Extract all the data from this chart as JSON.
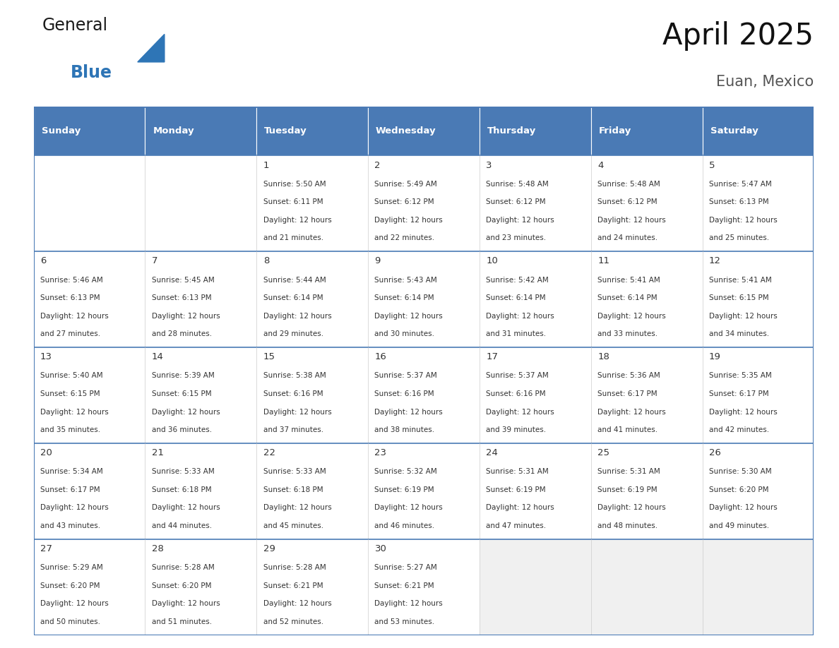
{
  "title": "April 2025",
  "subtitle": "Euan, Mexico",
  "header_color": "#4a7ab5",
  "header_text_color": "#ffffff",
  "cell_bg_color": "#ffffff",
  "alt_cell_bg_color": "#f0f0f0",
  "border_color": "#4a7ab5",
  "text_color": "#333333",
  "days_of_week": [
    "Sunday",
    "Monday",
    "Tuesday",
    "Wednesday",
    "Thursday",
    "Friday",
    "Saturday"
  ],
  "calendar_data": [
    [
      {
        "day": "",
        "sunrise": "",
        "sunset": "",
        "daylight_min": ""
      },
      {
        "day": "",
        "sunrise": "",
        "sunset": "",
        "daylight_min": ""
      },
      {
        "day": "1",
        "sunrise": "5:50 AM",
        "sunset": "6:11 PM",
        "daylight_min": "21 minutes."
      },
      {
        "day": "2",
        "sunrise": "5:49 AM",
        "sunset": "6:12 PM",
        "daylight_min": "22 minutes."
      },
      {
        "day": "3",
        "sunrise": "5:48 AM",
        "sunset": "6:12 PM",
        "daylight_min": "23 minutes."
      },
      {
        "day": "4",
        "sunrise": "5:48 AM",
        "sunset": "6:12 PM",
        "daylight_min": "24 minutes."
      },
      {
        "day": "5",
        "sunrise": "5:47 AM",
        "sunset": "6:13 PM",
        "daylight_min": "25 minutes."
      }
    ],
    [
      {
        "day": "6",
        "sunrise": "5:46 AM",
        "sunset": "6:13 PM",
        "daylight_min": "27 minutes."
      },
      {
        "day": "7",
        "sunrise": "5:45 AM",
        "sunset": "6:13 PM",
        "daylight_min": "28 minutes."
      },
      {
        "day": "8",
        "sunrise": "5:44 AM",
        "sunset": "6:14 PM",
        "daylight_min": "29 minutes."
      },
      {
        "day": "9",
        "sunrise": "5:43 AM",
        "sunset": "6:14 PM",
        "daylight_min": "30 minutes."
      },
      {
        "day": "10",
        "sunrise": "5:42 AM",
        "sunset": "6:14 PM",
        "daylight_min": "31 minutes."
      },
      {
        "day": "11",
        "sunrise": "5:41 AM",
        "sunset": "6:14 PM",
        "daylight_min": "33 minutes."
      },
      {
        "day": "12",
        "sunrise": "5:41 AM",
        "sunset": "6:15 PM",
        "daylight_min": "34 minutes."
      }
    ],
    [
      {
        "day": "13",
        "sunrise": "5:40 AM",
        "sunset": "6:15 PM",
        "daylight_min": "35 minutes."
      },
      {
        "day": "14",
        "sunrise": "5:39 AM",
        "sunset": "6:15 PM",
        "daylight_min": "36 minutes."
      },
      {
        "day": "15",
        "sunrise": "5:38 AM",
        "sunset": "6:16 PM",
        "daylight_min": "37 minutes."
      },
      {
        "day": "16",
        "sunrise": "5:37 AM",
        "sunset": "6:16 PM",
        "daylight_min": "38 minutes."
      },
      {
        "day": "17",
        "sunrise": "5:37 AM",
        "sunset": "6:16 PM",
        "daylight_min": "39 minutes."
      },
      {
        "day": "18",
        "sunrise": "5:36 AM",
        "sunset": "6:17 PM",
        "daylight_min": "41 minutes."
      },
      {
        "day": "19",
        "sunrise": "5:35 AM",
        "sunset": "6:17 PM",
        "daylight_min": "42 minutes."
      }
    ],
    [
      {
        "day": "20",
        "sunrise": "5:34 AM",
        "sunset": "6:17 PM",
        "daylight_min": "43 minutes."
      },
      {
        "day": "21",
        "sunrise": "5:33 AM",
        "sunset": "6:18 PM",
        "daylight_min": "44 minutes."
      },
      {
        "day": "22",
        "sunrise": "5:33 AM",
        "sunset": "6:18 PM",
        "daylight_min": "45 minutes."
      },
      {
        "day": "23",
        "sunrise": "5:32 AM",
        "sunset": "6:19 PM",
        "daylight_min": "46 minutes."
      },
      {
        "day": "24",
        "sunrise": "5:31 AM",
        "sunset": "6:19 PM",
        "daylight_min": "47 minutes."
      },
      {
        "day": "25",
        "sunrise": "5:31 AM",
        "sunset": "6:19 PM",
        "daylight_min": "48 minutes."
      },
      {
        "day": "26",
        "sunrise": "5:30 AM",
        "sunset": "6:20 PM",
        "daylight_min": "49 minutes."
      }
    ],
    [
      {
        "day": "27",
        "sunrise": "5:29 AM",
        "sunset": "6:20 PM",
        "daylight_min": "50 minutes."
      },
      {
        "day": "28",
        "sunrise": "5:28 AM",
        "sunset": "6:20 PM",
        "daylight_min": "51 minutes."
      },
      {
        "day": "29",
        "sunrise": "5:28 AM",
        "sunset": "6:21 PM",
        "daylight_min": "52 minutes."
      },
      {
        "day": "30",
        "sunrise": "5:27 AM",
        "sunset": "6:21 PM",
        "daylight_min": "53 minutes."
      },
      {
        "day": "",
        "sunrise": "",
        "sunset": "",
        "daylight_min": ""
      },
      {
        "day": "",
        "sunrise": "",
        "sunset": "",
        "daylight_min": ""
      },
      {
        "day": "",
        "sunrise": "",
        "sunset": "",
        "daylight_min": ""
      }
    ]
  ],
  "logo_text_general": "General",
  "logo_text_blue": "Blue",
  "logo_triangle_color": "#2e75b6",
  "logo_general_color": "#1a1a1a",
  "logo_blue_color": "#2e75b6"
}
